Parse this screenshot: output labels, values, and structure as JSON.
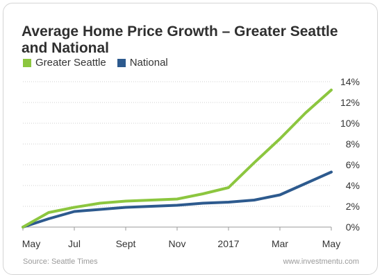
{
  "chart_data": {
    "type": "line",
    "title": "Average Home Price Growth – Greater Seattle and National",
    "xlabel": "",
    "ylabel": "",
    "x_tick_labels": [
      "May",
      "Jul",
      "Sept",
      "Nov",
      "2017",
      "Mar",
      "May"
    ],
    "y_tick_labels": [
      "0%",
      "2%",
      "4%",
      "6%",
      "8%",
      "10%",
      "12%",
      "14%"
    ],
    "ylim": [
      0,
      14
    ],
    "grid": true,
    "legend_position": "top-left",
    "series": [
      {
        "name": "Greater Seattle",
        "color": "#8cc63f",
        "x": [
          0,
          1,
          2,
          3,
          4,
          5,
          6,
          7,
          8,
          9,
          10,
          11,
          12
        ],
        "values": [
          0.0,
          1.4,
          1.9,
          2.3,
          2.5,
          2.6,
          2.7,
          3.2,
          3.8,
          6.2,
          8.5,
          11.0,
          13.2
        ]
      },
      {
        "name": "National",
        "color": "#2d5a8e",
        "x": [
          0,
          1,
          2,
          3,
          4,
          5,
          6,
          7,
          8,
          9,
          10,
          11,
          12
        ],
        "values": [
          0.0,
          0.8,
          1.5,
          1.7,
          1.9,
          2.0,
          2.1,
          2.3,
          2.4,
          2.6,
          3.1,
          4.2,
          5.3
        ]
      }
    ]
  },
  "footer": {
    "source": "Source: Seattle Times",
    "site": "www.investmentu.com"
  }
}
